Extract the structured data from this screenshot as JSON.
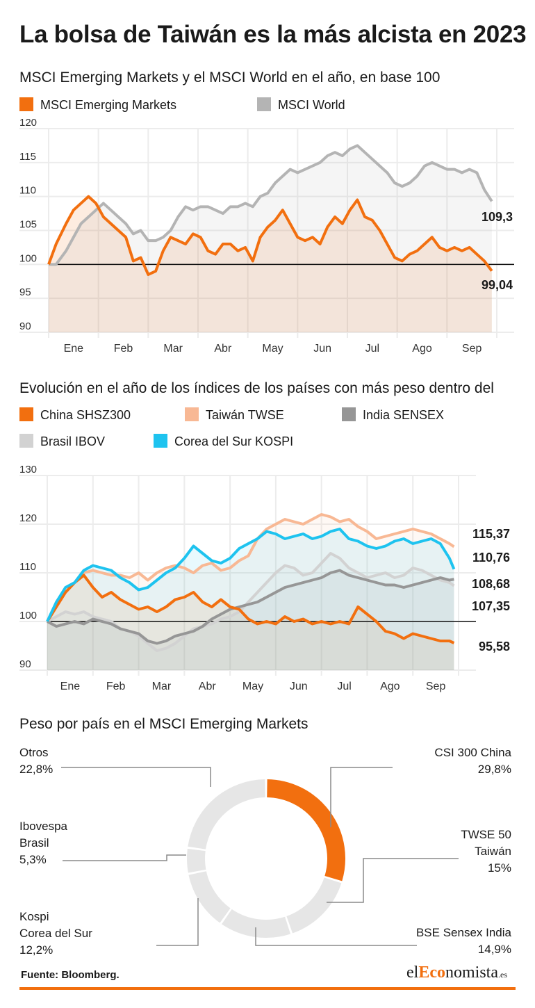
{
  "title": "La bolsa de Taiwán es la más alcista en 2023",
  "colors": {
    "emerging": "#f26f0f",
    "world": "#b4b4b4",
    "china": "#f26f0f",
    "taiwan": "#f8b894",
    "india": "#969696",
    "brasil": "#d2d2d2",
    "korea": "#1ec3ef",
    "donut_main": "#f26f0f",
    "donut_rest": "#e6e6e6"
  },
  "chart1": {
    "subtitle": "MSCI Emerging Markets y el MSCI World en el año, en base 100",
    "legend": [
      "MSCI Emerging Markets",
      "MSCI World"
    ],
    "end_labels": [
      "109,3",
      "99,04"
    ]
  },
  "chart2": {
    "subtitle": "Evolución en el año de los índices de los países con más peso dentro del",
    "legend": [
      "China SHSZ300",
      "Taiwán TWSE",
      "India SENSEX",
      "Brasil IBOV",
      "Corea del Sur KOSPI"
    ],
    "end_labels": [
      "115,37",
      "110,76",
      "108,68",
      "107,35",
      "95,58"
    ]
  },
  "chart3": {
    "subtitle": "Peso por país en el MSCI Emerging Markets"
  },
  "source": "Fuente: Bloomberg.",
  "logo": {
    "a": "el",
    "b": "Eco",
    "c": "nomista",
    "d": ".es"
  },
  "chart_data": [
    {
      "type": "line",
      "title": "MSCI Emerging Markets y el MSCI World en el año, en base 100",
      "x_ticks": [
        "Ene",
        "Feb",
        "Mar",
        "Abr",
        "May",
        "Jun",
        "Jul",
        "Ago",
        "Sep"
      ],
      "y_ticks": [
        90,
        95,
        100,
        105,
        110,
        115,
        120
      ],
      "ylim": [
        90,
        120
      ],
      "reference_line": 100,
      "legend_position": "top",
      "series": [
        {
          "name": "MSCI Emerging Markets",
          "x": [
            0,
            0.15,
            0.35,
            0.5,
            0.65,
            0.8,
            0.95,
            1.1,
            1.25,
            1.4,
            1.55,
            1.7,
            1.85,
            2.0,
            2.15,
            2.3,
            2.45,
            2.6,
            2.75,
            2.9,
            3.05,
            3.2,
            3.35,
            3.5,
            3.65,
            3.8,
            3.95,
            4.1,
            4.25,
            4.4,
            4.55,
            4.7,
            4.85,
            5.0,
            5.15,
            5.3,
            5.45,
            5.6,
            5.75,
            5.9,
            6.05,
            6.2,
            6.35,
            6.5,
            6.65,
            6.8,
            6.95,
            7.1,
            7.25,
            7.4,
            7.55,
            7.7,
            7.85,
            8.0,
            8.15,
            8.3,
            8.45,
            8.6,
            8.75,
            8.9
          ],
          "values": [
            100,
            103,
            106,
            108,
            109,
            110,
            109,
            107,
            106,
            105,
            104,
            100.5,
            101,
            98.5,
            99,
            102,
            104,
            103.5,
            103,
            104.5,
            104,
            102,
            101.5,
            103,
            103,
            102,
            102.5,
            100.5,
            104,
            105.5,
            106.5,
            108,
            106,
            104,
            103.5,
            104,
            103,
            105.5,
            107,
            106,
            108,
            109.5,
            107,
            106.5,
            105,
            103,
            101,
            100.5,
            101.5,
            102,
            103,
            104,
            102.5,
            102,
            102.5,
            102,
            102.5,
            101.5,
            100.5,
            99.04
          ]
        },
        {
          "name": "MSCI World",
          "x": [
            0,
            0.15,
            0.35,
            0.5,
            0.65,
            0.8,
            0.95,
            1.1,
            1.25,
            1.4,
            1.55,
            1.7,
            1.85,
            2.0,
            2.15,
            2.3,
            2.45,
            2.6,
            2.75,
            2.9,
            3.05,
            3.2,
            3.35,
            3.5,
            3.65,
            3.8,
            3.95,
            4.1,
            4.25,
            4.4,
            4.55,
            4.7,
            4.85,
            5.0,
            5.15,
            5.3,
            5.45,
            5.6,
            5.75,
            5.9,
            6.05,
            6.2,
            6.35,
            6.5,
            6.65,
            6.8,
            6.95,
            7.1,
            7.25,
            7.4,
            7.55,
            7.7,
            7.85,
            8.0,
            8.15,
            8.3,
            8.45,
            8.6,
            8.75,
            8.9
          ],
          "values": [
            100,
            100,
            102,
            104,
            106,
            107,
            108,
            109,
            108,
            107,
            106,
            104.5,
            105,
            103.5,
            103.5,
            104,
            105,
            107,
            108.5,
            108,
            108.5,
            108.5,
            108,
            107.5,
            108.5,
            108.5,
            109,
            108.5,
            110,
            110.5,
            112,
            113,
            114,
            113.5,
            114,
            114.5,
            115,
            116,
            116.5,
            116,
            117,
            117.5,
            116.5,
            115.5,
            114.5,
            113.5,
            112,
            111.5,
            112,
            113,
            114.5,
            115,
            114.5,
            114,
            114,
            113.5,
            114,
            113.5,
            111,
            109.3
          ]
        }
      ]
    },
    {
      "type": "line",
      "title": "Evolución en el año de los índices de los países con más peso dentro del",
      "x_ticks": [
        "Ene",
        "Feb",
        "Mar",
        "Abr",
        "May",
        "Jun",
        "Jul",
        "Ago",
        "Sep"
      ],
      "y_ticks": [
        90,
        100,
        110,
        120,
        130
      ],
      "ylim": [
        90,
        130
      ],
      "reference_line": 100,
      "legend_position": "top",
      "series": [
        {
          "name": "China SHSZ300",
          "x": [
            0,
            0.2,
            0.4,
            0.6,
            0.8,
            1.0,
            1.2,
            1.4,
            1.6,
            1.8,
            2.0,
            2.2,
            2.4,
            2.6,
            2.8,
            3.0,
            3.2,
            3.4,
            3.6,
            3.8,
            4.0,
            4.2,
            4.4,
            4.6,
            4.8,
            5.0,
            5.2,
            5.4,
            5.6,
            5.8,
            6.0,
            6.2,
            6.4,
            6.6,
            6.8,
            7.0,
            7.2,
            7.4,
            7.6,
            7.8,
            8.0,
            8.2,
            8.4,
            8.6,
            8.8,
            8.9
          ],
          "values": [
            100,
            103,
            106,
            108,
            109.5,
            107,
            105,
            106,
            104.5,
            103.5,
            102.5,
            103,
            102,
            103,
            104.5,
            105,
            106,
            104,
            103,
            104.5,
            103,
            102.5,
            100.5,
            99.5,
            100,
            99.5,
            101,
            100,
            100.5,
            99.5,
            100,
            99.5,
            100,
            99.5,
            103,
            101.5,
            100,
            98,
            97.5,
            96.5,
            97.5,
            97,
            96.5,
            96,
            96,
            95.58
          ]
        },
        {
          "name": "Taiwán TWSE",
          "x": [
            0,
            0.2,
            0.4,
            0.6,
            0.8,
            1.0,
            1.2,
            1.4,
            1.6,
            1.8,
            2.0,
            2.2,
            2.4,
            2.6,
            2.8,
            3.0,
            3.2,
            3.4,
            3.6,
            3.8,
            4.0,
            4.2,
            4.4,
            4.6,
            4.8,
            5.0,
            5.2,
            5.4,
            5.6,
            5.8,
            6.0,
            6.2,
            6.4,
            6.6,
            6.8,
            7.0,
            7.2,
            7.4,
            7.6,
            7.8,
            8.0,
            8.2,
            8.4,
            8.6,
            8.8,
            8.9
          ],
          "values": [
            100,
            103.5,
            106,
            108,
            110,
            110.5,
            110,
            109.5,
            109.5,
            109,
            110,
            108.5,
            110,
            111,
            111.5,
            111,
            110,
            111.5,
            112,
            110.5,
            111,
            112.5,
            113.5,
            117,
            119,
            120,
            121,
            120.5,
            120,
            121,
            122,
            121.5,
            120.5,
            121,
            119.5,
            118.5,
            117,
            117.5,
            118,
            118.5,
            119,
            118.5,
            118,
            117,
            116,
            115.37
          ]
        },
        {
          "name": "India SENSEX",
          "x": [
            0,
            0.2,
            0.4,
            0.6,
            0.8,
            1.0,
            1.2,
            1.4,
            1.6,
            1.8,
            2.0,
            2.2,
            2.4,
            2.6,
            2.8,
            3.0,
            3.2,
            3.4,
            3.6,
            3.8,
            4.0,
            4.2,
            4.4,
            4.6,
            4.8,
            5.0,
            5.2,
            5.4,
            5.6,
            5.8,
            6.0,
            6.2,
            6.4,
            6.6,
            6.8,
            7.0,
            7.2,
            7.4,
            7.6,
            7.8,
            8.0,
            8.2,
            8.4,
            8.6,
            8.8,
            8.9
          ],
          "values": [
            100,
            99,
            99.5,
            100,
            99.5,
            100.5,
            100,
            99.5,
            98.5,
            98,
            97.5,
            96,
            95.5,
            96,
            97,
            97.5,
            98,
            99,
            100.5,
            101.5,
            102.5,
            103,
            103.5,
            104,
            105,
            106,
            107,
            107.5,
            108,
            108.5,
            109,
            110,
            110.5,
            109.5,
            109,
            108.5,
            108,
            107.5,
            107.5,
            107,
            107.5,
            108,
            108.5,
            109,
            108.5,
            108.68
          ]
        },
        {
          "name": "Brasil IBOV",
          "x": [
            0,
            0.2,
            0.4,
            0.6,
            0.8,
            1.0,
            1.2,
            1.4,
            1.6,
            1.8,
            2.0,
            2.2,
            2.4,
            2.6,
            2.8,
            3.0,
            3.2,
            3.4,
            3.6,
            3.8,
            4.0,
            4.2,
            4.4,
            4.6,
            4.8,
            5.0,
            5.2,
            5.4,
            5.6,
            5.8,
            6.0,
            6.2,
            6.4,
            6.6,
            6.8,
            7.0,
            7.2,
            7.4,
            7.6,
            7.8,
            8.0,
            8.2,
            8.4,
            8.6,
            8.8,
            8.9
          ],
          "values": [
            100,
            101,
            102,
            101.5,
            102,
            101,
            100.5,
            100,
            98.5,
            98,
            97,
            95.5,
            94,
            94.5,
            95.5,
            97,
            98.5,
            99,
            99.5,
            100.5,
            101,
            102,
            104,
            106,
            108,
            110,
            111.5,
            111,
            109.5,
            110,
            112,
            114,
            113,
            111,
            110,
            109,
            109.5,
            110,
            109,
            109.5,
            111,
            110.5,
            109.5,
            108.5,
            108,
            107.35
          ]
        },
        {
          "name": "Corea del Sur KOSPI",
          "x": [
            0,
            0.2,
            0.4,
            0.6,
            0.8,
            1.0,
            1.2,
            1.4,
            1.6,
            1.8,
            2.0,
            2.2,
            2.4,
            2.6,
            2.8,
            3.0,
            3.2,
            3.4,
            3.6,
            3.8,
            4.0,
            4.2,
            4.4,
            4.6,
            4.8,
            5.0,
            5.2,
            5.4,
            5.6,
            5.8,
            6.0,
            6.2,
            6.4,
            6.6,
            6.8,
            7.0,
            7.2,
            7.4,
            7.6,
            7.8,
            8.0,
            8.2,
            8.4,
            8.6,
            8.8,
            8.9
          ],
          "values": [
            100,
            104,
            107,
            108,
            110.5,
            111.5,
            111,
            110.5,
            109,
            108,
            106.5,
            107,
            108.5,
            110,
            111,
            113,
            115.5,
            114,
            112.5,
            112,
            113,
            115,
            116,
            117,
            118.5,
            118,
            117,
            117.5,
            118,
            117,
            117.5,
            118.5,
            119,
            117,
            116.5,
            115.5,
            115,
            115.5,
            116.5,
            117,
            116,
            116.5,
            117,
            116,
            113,
            110.76
          ]
        }
      ]
    },
    {
      "type": "pie",
      "title": "Peso por país en el MSCI Emerging Markets",
      "labels": [
        "CSI 300 China",
        "TWSE 50 Taiwán",
        "BSE Sensex India",
        "Kospi Corea del Sur",
        "Ibovespa Brasil",
        "Otros"
      ],
      "label_lines": [
        [
          "CSI 300 China"
        ],
        [
          "TWSE 50",
          "Taiwán"
        ],
        [
          "BSE Sensex India"
        ],
        [
          "Kospi",
          "Corea del Sur"
        ],
        [
          "Ibovespa",
          "Brasil"
        ],
        [
          "Otros"
        ]
      ],
      "values": [
        29.8,
        15,
        14.9,
        12.2,
        5.3,
        22.8
      ],
      "value_labels": [
        "29,8%",
        "15%",
        "14,9%",
        "12,2%",
        "5,3%",
        "22,8%"
      ],
      "highlight": "CSI 300 China"
    }
  ]
}
